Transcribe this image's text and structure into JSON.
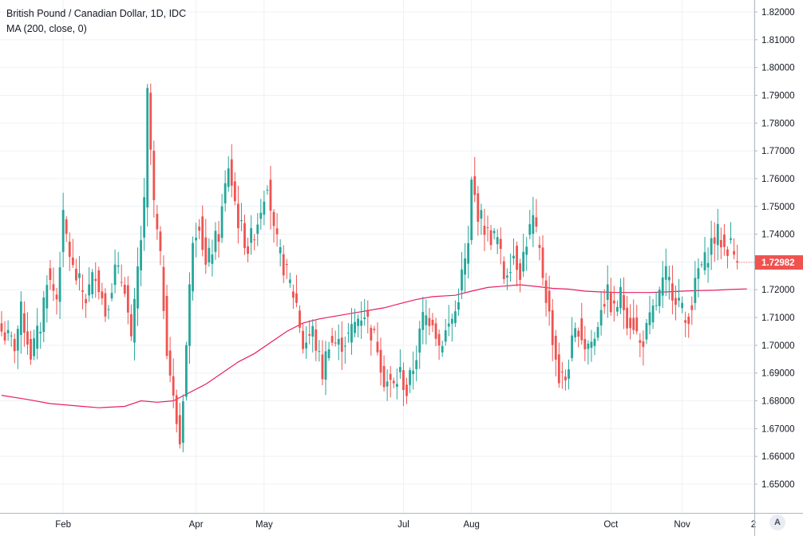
{
  "chart_data": {
    "type": "candlestick",
    "title": "British Pound / Canadian Dollar, 1D, IDC",
    "indicator": "MA (200, close, 0)",
    "ylim": [
      1.645,
      1.825
    ],
    "y_ticks": [
      "1.82000",
      "1.81000",
      "1.80000",
      "1.79000",
      "1.78000",
      "1.77000",
      "1.76000",
      "1.75000",
      "1.74000",
      "1.73000",
      "1.72000",
      "1.71000",
      "1.70000",
      "1.69000",
      "1.68000",
      "1.67000",
      "1.66000",
      "1.65000"
    ],
    "x_ticks": [
      {
        "label": "Feb",
        "index": 19
      },
      {
        "label": "Apr",
        "index": 60
      },
      {
        "label": "May",
        "index": 81
      },
      {
        "label": "Jul",
        "index": 124
      },
      {
        "label": "Aug",
        "index": 145
      },
      {
        "label": "Oct",
        "index": 188
      },
      {
        "label": "Nov",
        "index": 210
      },
      {
        "label": "2",
        "index": 232
      }
    ],
    "last_price": "1.72982",
    "colors": {
      "up": "#26a69a",
      "down": "#ef5350",
      "ma": "#e91e63",
      "grid": "#eef1f5",
      "price_tag": "#ef5350"
    },
    "grid": true,
    "waypoints": [
      [
        0,
        1.705
      ],
      [
        4,
        1.7
      ],
      [
        6,
        1.712
      ],
      [
        9,
        1.697
      ],
      [
        12,
        1.707
      ],
      [
        14,
        1.725
      ],
      [
        17,
        1.717
      ],
      [
        19,
        1.745
      ],
      [
        22,
        1.727
      ],
      [
        26,
        1.717
      ],
      [
        29,
        1.727
      ],
      [
        32,
        1.712
      ],
      [
        35,
        1.727
      ],
      [
        38,
        1.722
      ],
      [
        40,
        1.7
      ],
      [
        42,
        1.727
      ],
      [
        44,
        1.75
      ],
      [
        45,
        1.79
      ],
      [
        47,
        1.75
      ],
      [
        49,
        1.73
      ],
      [
        51,
        1.7
      ],
      [
        53,
        1.68
      ],
      [
        55,
        1.665
      ],
      [
        57,
        1.7
      ],
      [
        59,
        1.74
      ],
      [
        61,
        1.745
      ],
      [
        63,
        1.728
      ],
      [
        65,
        1.735
      ],
      [
        67,
        1.74
      ],
      [
        70,
        1.765
      ],
      [
        73,
        1.745
      ],
      [
        76,
        1.735
      ],
      [
        79,
        1.745
      ],
      [
        82,
        1.76
      ],
      [
        84,
        1.74
      ],
      [
        86,
        1.732
      ],
      [
        89,
        1.722
      ],
      [
        91,
        1.715
      ],
      [
        93,
        1.7
      ],
      [
        96,
        1.705
      ],
      [
        99,
        1.69
      ],
      [
        101,
        1.702
      ],
      [
        104,
        1.7
      ],
      [
        107,
        1.703
      ],
      [
        110,
        1.71
      ],
      [
        112,
        1.712
      ],
      [
        114,
        1.705
      ],
      [
        116,
        1.7
      ],
      [
        118,
        1.688
      ],
      [
        121,
        1.685
      ],
      [
        123,
        1.69
      ],
      [
        125,
        1.683
      ],
      [
        128,
        1.697
      ],
      [
        130,
        1.71
      ],
      [
        133,
        1.71
      ],
      [
        135,
        1.7
      ],
      [
        138,
        1.707
      ],
      [
        140,
        1.712
      ],
      [
        142,
        1.725
      ],
      [
        144,
        1.735
      ],
      [
        145,
        1.758
      ],
      [
        147,
        1.748
      ],
      [
        150,
        1.74
      ],
      [
        153,
        1.738
      ],
      [
        155,
        1.725
      ],
      [
        158,
        1.733
      ],
      [
        160,
        1.727
      ],
      [
        162,
        1.738
      ],
      [
        164,
        1.745
      ],
      [
        166,
        1.733
      ],
      [
        168,
        1.718
      ],
      [
        170,
        1.703
      ],
      [
        172,
        1.688
      ],
      [
        174,
        1.688
      ],
      [
        176,
        1.7
      ],
      [
        178,
        1.707
      ],
      [
        180,
        1.7
      ],
      [
        183,
        1.702
      ],
      [
        185,
        1.715
      ],
      [
        187,
        1.718
      ],
      [
        189,
        1.712
      ],
      [
        191,
        1.718
      ],
      [
        193,
        1.71
      ],
      [
        195,
        1.708
      ],
      [
        197,
        1.7
      ],
      [
        199,
        1.705
      ],
      [
        201,
        1.712
      ],
      [
        203,
        1.718
      ],
      [
        205,
        1.725
      ],
      [
        207,
        1.72
      ],
      [
        209,
        1.716
      ],
      [
        211,
        1.708
      ],
      [
        213,
        1.715
      ],
      [
        215,
        1.727
      ],
      [
        217,
        1.73
      ],
      [
        219,
        1.737
      ],
      [
        221,
        1.74
      ],
      [
        223,
        1.735
      ],
      [
        225,
        1.736
      ],
      [
        227,
        1.7298
      ]
    ],
    "ma_points": [
      [
        0,
        1.682
      ],
      [
        8,
        1.6805
      ],
      [
        15,
        1.679
      ],
      [
        25,
        1.678
      ],
      [
        30,
        1.6775
      ],
      [
        38,
        1.678
      ],
      [
        43,
        1.68
      ],
      [
        48,
        1.6795
      ],
      [
        53,
        1.68
      ],
      [
        58,
        1.683
      ],
      [
        63,
        1.686
      ],
      [
        68,
        1.69
      ],
      [
        73,
        1.694
      ],
      [
        78,
        1.697
      ],
      [
        83,
        1.701
      ],
      [
        88,
        1.705
      ],
      [
        93,
        1.708
      ],
      [
        98,
        1.7095
      ],
      [
        103,
        1.7105
      ],
      [
        108,
        1.7115
      ],
      [
        113,
        1.7125
      ],
      [
        118,
        1.7135
      ],
      [
        123,
        1.715
      ],
      [
        128,
        1.7165
      ],
      [
        133,
        1.7175
      ],
      [
        140,
        1.718
      ],
      [
        145,
        1.7195
      ],
      [
        150,
        1.7208
      ],
      [
        155,
        1.7213
      ],
      [
        160,
        1.7218
      ],
      [
        165,
        1.7212
      ],
      [
        170,
        1.7205
      ],
      [
        175,
        1.7202
      ],
      [
        180,
        1.7195
      ],
      [
        185,
        1.7192
      ],
      [
        190,
        1.719
      ],
      [
        195,
        1.719
      ],
      [
        200,
        1.719
      ],
      [
        205,
        1.7192
      ],
      [
        210,
        1.7195
      ],
      [
        215,
        1.7197
      ],
      [
        220,
        1.7198
      ],
      [
        225,
        1.7201
      ],
      [
        230,
        1.7203
      ]
    ]
  },
  "ui": {
    "title": "British Pound / Canadian Dollar, 1D, IDC",
    "subtitle": "MA (200, close, 0)",
    "settings_label": "A"
  }
}
